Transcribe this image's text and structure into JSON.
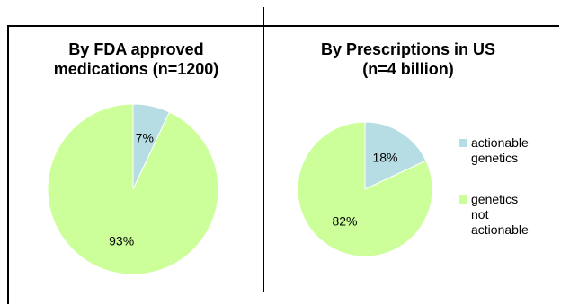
{
  "colors": {
    "actionable": "#b7dde4",
    "not_actionable": "#ccff99",
    "stroke": "#ffffff"
  },
  "legend": {
    "items": [
      {
        "label_lines": [
          "actionable",
          "genetics"
        ],
        "color_key": "actionable"
      },
      {
        "label_lines": [
          "genetics",
          "not",
          "actionable"
        ],
        "color_key": "not_actionable"
      }
    ]
  },
  "chart_data": [
    {
      "type": "pie",
      "title_lines": [
        "By FDA approved",
        "medications (n=1200)"
      ],
      "categories": [
        "actionable genetics",
        "genetics not actionable"
      ],
      "values": [
        7,
        93
      ],
      "data_labels": [
        "7%",
        "93%"
      ]
    },
    {
      "type": "pie",
      "title_lines": [
        "By Prescriptions in US",
        "(n=4 billion)"
      ],
      "categories": [
        "actionable genetics",
        "genetics not actionable"
      ],
      "values": [
        18,
        82
      ],
      "data_labels": [
        "18%",
        "82%"
      ],
      "legend_position": "right"
    }
  ]
}
